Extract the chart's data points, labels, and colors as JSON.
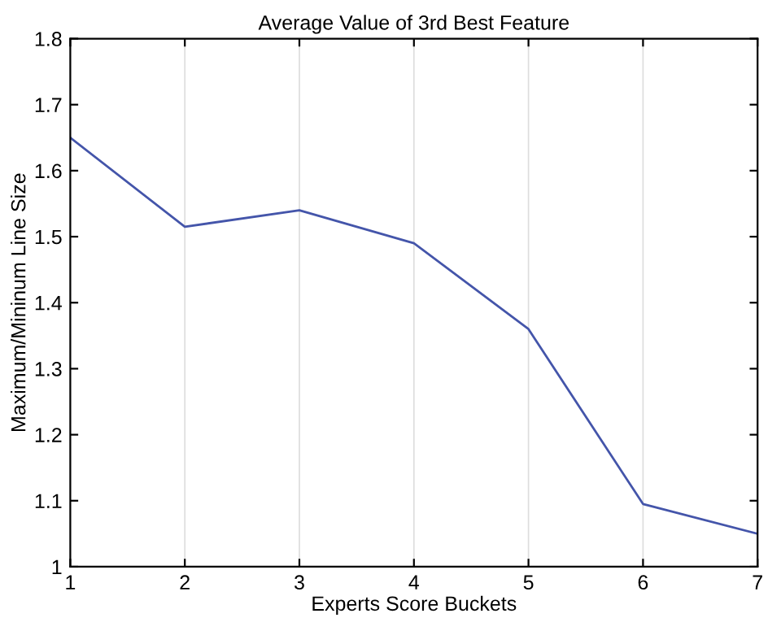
{
  "chart_data": {
    "type": "line",
    "title": "Average Value of 3rd Best Feature",
    "xlabel": "Experts Score Buckets",
    "ylabel": "Maximum/Mininum Line Size",
    "x": [
      1,
      2,
      3,
      4,
      5,
      6,
      7
    ],
    "series": [
      {
        "color": "#4455aa",
        "values": [
          1.65,
          1.515,
          1.54,
          1.49,
          1.36,
          1.095,
          1.05
        ]
      }
    ],
    "xlim": [
      1,
      7
    ],
    "xticks": [
      1,
      2,
      3,
      4,
      5,
      6,
      7
    ],
    "ylim": [
      1,
      1.8
    ],
    "yticks": [
      1,
      1.1,
      1.2,
      1.3,
      1.4,
      1.5,
      1.6,
      1.7,
      1.8
    ],
    "grid": "x",
    "marker": "none",
    "line_style": "solid"
  }
}
